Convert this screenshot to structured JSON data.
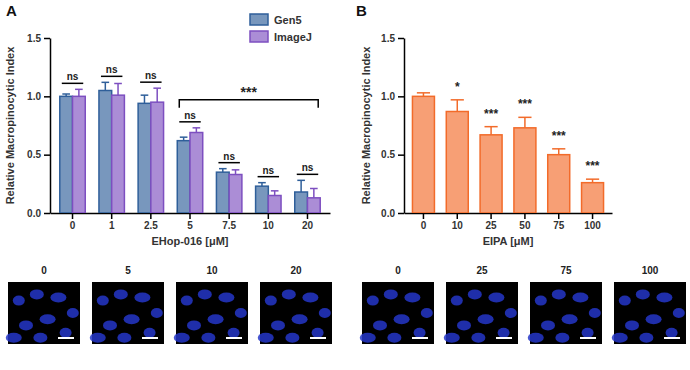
{
  "chart_data": [
    {
      "type": "bar",
      "panel_label": "A",
      "x_label": "EHop-016 [μM]",
      "y_label": "Relative Macropinocytic Index",
      "categories": [
        "0",
        "1",
        "2.5",
        "5",
        "7.5",
        "10",
        "20"
      ],
      "series": [
        {
          "name": "Gen5",
          "color": "#2f5f9a",
          "values": [
            1.0,
            1.05,
            0.94,
            0.62,
            0.35,
            0.23,
            0.18
          ],
          "errors": [
            0.02,
            0.07,
            0.07,
            0.03,
            0.03,
            0.03,
            0.1
          ]
        },
        {
          "name": "ImageJ",
          "color": "#7d4fc0",
          "values": [
            1.0,
            1.01,
            0.95,
            0.69,
            0.33,
            0.15,
            0.13
          ],
          "errors": [
            0.06,
            0.1,
            0.12,
            0.04,
            0.04,
            0.04,
            0.08
          ]
        }
      ],
      "ylim": [
        0,
        1.5
      ],
      "yticks": [
        {
          "value": 0,
          "label": "0.0"
        },
        0.5,
        {
          "value": 1,
          "label": "1.0"
        },
        1.5
      ],
      "legend": "top-right",
      "annotations": [
        {
          "text": "ns",
          "category": 0
        },
        {
          "text": "ns",
          "category": 1
        },
        {
          "text": "ns",
          "category": 2
        },
        {
          "text": "ns",
          "category": 3
        },
        {
          "text": "ns",
          "category": 4
        },
        {
          "text": "ns",
          "category": 5
        },
        {
          "text": "ns",
          "category": 6
        },
        {
          "text": "***",
          "from": 3,
          "to": 6
        }
      ],
      "micrographs": [
        "0",
        "5",
        "10",
        "20"
      ]
    },
    {
      "type": "bar",
      "panel_label": "B",
      "x_label": "EIPA [μM]",
      "y_label": "Relative Macropinocytic Index",
      "categories": [
        "0",
        "10",
        "25",
        "50",
        "75",
        "100"
      ],
      "series": [
        {
          "color": "#f26b2a",
          "values": [
            1.0,
            0.87,
            0.67,
            0.73,
            0.5,
            0.26
          ],
          "errors": [
            0.03,
            0.1,
            0.07,
            0.09,
            0.05,
            0.03
          ]
        }
      ],
      "ylim": [
        0,
        1.5
      ],
      "yticks": [
        {
          "value": 0,
          "label": "0.0"
        },
        0.5,
        {
          "value": 1,
          "label": "1.0"
        },
        1.5
      ],
      "annotations": [
        {
          "text": "*",
          "category": 1
        },
        {
          "text": "***",
          "category": 2
        },
        {
          "text": "***",
          "category": 3
        },
        {
          "text": "***",
          "category": 4
        },
        {
          "text": "***",
          "category": 5
        }
      ],
      "micrographs": [
        "0",
        "25",
        "75",
        "100"
      ]
    }
  ]
}
